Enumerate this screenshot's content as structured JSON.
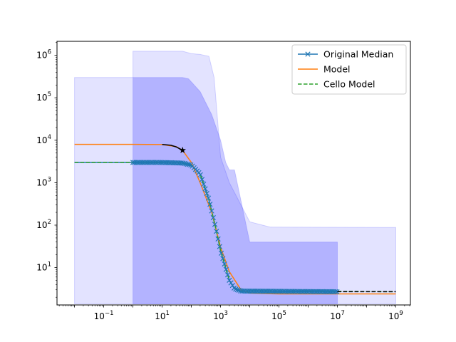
{
  "chart_data": {
    "type": "line",
    "title": "",
    "xlabel": "",
    "ylabel": "",
    "xscale": "log",
    "yscale": "log",
    "xlim_log10": [
      -2.6,
      9.5
    ],
    "ylim_log10": [
      0.12,
      6.33
    ],
    "grid": false,
    "legend_position": "top-right",
    "x_ticks": [
      {
        "exp": -1,
        "base": "10",
        "sup": "−1"
      },
      {
        "exp": 1,
        "base": "10",
        "sup": "1"
      },
      {
        "exp": 3,
        "base": "10",
        "sup": "3"
      },
      {
        "exp": 5,
        "base": "10",
        "sup": "5"
      },
      {
        "exp": 7,
        "base": "10",
        "sup": "7"
      },
      {
        "exp": 9,
        "base": "10",
        "sup": "9"
      }
    ],
    "y_ticks": [
      {
        "exp": 1,
        "base": "10",
        "sup": "1"
      },
      {
        "exp": 2,
        "base": "10",
        "sup": "2"
      },
      {
        "exp": 3,
        "base": "10",
        "sup": "3"
      },
      {
        "exp": 4,
        "base": "10",
        "sup": "4"
      },
      {
        "exp": 5,
        "base": "10",
        "sup": "5"
      },
      {
        "exp": 6,
        "base": "10",
        "sup": "6"
      }
    ],
    "series": [
      {
        "name": "Original Median",
        "color": "#1f77b4",
        "style": "solid-x-markers",
        "points": [
          [
            0.01,
            3000
          ],
          [
            1,
            3000
          ],
          [
            10,
            2990
          ],
          [
            50,
            2900
          ],
          [
            100,
            2600
          ],
          [
            200,
            1600
          ],
          [
            400,
            400
          ],
          [
            700,
            80
          ],
          [
            1000,
            25
          ],
          [
            2000,
            5
          ],
          [
            3000,
            3.2
          ],
          [
            5000,
            2.8
          ],
          [
            10000000,
            2.7
          ]
        ]
      },
      {
        "name": "Model",
        "color": "#ff7f0e",
        "style": "solid",
        "points": [
          [
            0.01,
            8000
          ],
          [
            1,
            8000
          ],
          [
            10,
            7900
          ],
          [
            30,
            7100
          ],
          [
            50,
            5800
          ],
          [
            100,
            3000
          ],
          [
            200,
            1000
          ],
          [
            500,
            200
          ],
          [
            1000,
            30
          ],
          [
            2000,
            8
          ],
          [
            5000,
            3
          ],
          [
            10000,
            2.5
          ],
          [
            100000,
            2.4
          ],
          [
            1000000000,
            2.4
          ]
        ]
      },
      {
        "name": "Cello Model",
        "color": "#2ca02c",
        "style": "dashed",
        "points": [
          [
            0.01,
            3000
          ],
          [
            1,
            3000
          ],
          [
            10,
            2990
          ],
          [
            50,
            2900
          ],
          [
            100,
            2600
          ],
          [
            200,
            1600
          ],
          [
            400,
            400
          ],
          [
            700,
            80
          ],
          [
            1000,
            25
          ],
          [
            2000,
            5
          ],
          [
            3000,
            3.2
          ],
          [
            5000,
            2.8
          ],
          [
            1000000000,
            2.7
          ]
        ]
      }
    ],
    "annotations": [
      {
        "kind": "black-curve",
        "color": "#000000",
        "points": [
          [
            10,
            7950
          ],
          [
            20,
            7600
          ],
          [
            30,
            7000
          ],
          [
            50,
            5800
          ]
        ]
      },
      {
        "kind": "star-marker",
        "color": "#000000",
        "x": 50,
        "y": 5800
      },
      {
        "kind": "black-dashed-tail",
        "color": "#000000",
        "points": [
          [
            10000000,
            2.7
          ],
          [
            1000000000,
            2.7
          ]
        ]
      }
    ],
    "bands": [
      {
        "color": "#0000ff",
        "opacity": 0.11,
        "points": [
          [
            0.01,
            300000,
            1.4
          ],
          [
            1,
            300000,
            1.4
          ],
          [
            10,
            300000,
            1.4
          ],
          [
            50,
            300000,
            1.4
          ],
          [
            100,
            250000,
            1.4
          ],
          [
            10000000,
            1.4,
            1.4
          ]
        ],
        "shape": "outer-left"
      },
      {
        "color": "#0000ff",
        "opacity": 0.11,
        "shape": "outer-right"
      },
      {
        "color": "#0000ff",
        "opacity": 0.11,
        "shape": "inner"
      }
    ]
  }
}
